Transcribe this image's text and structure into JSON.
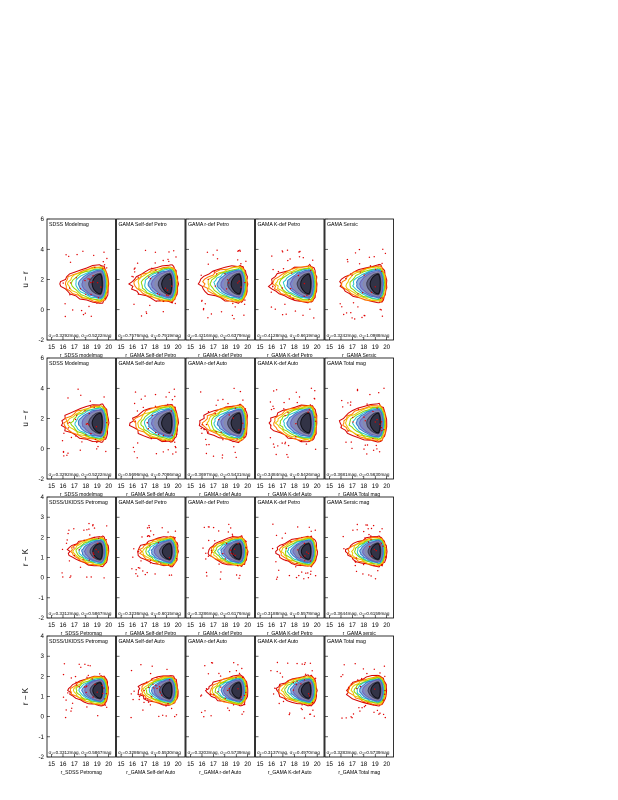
{
  "chart_data": {
    "type": "scatter",
    "grid_columns": 5,
    "x_ticks": [
      15,
      16,
      17,
      18,
      19,
      20
    ],
    "xlim": [
      14.6,
      20.6
    ],
    "panel_groups": [
      {
        "ylabel": "u − r",
        "ylim": [
          -2,
          6
        ],
        "y_ticks": [
          -2,
          0,
          2,
          4,
          6
        ],
        "core_y": 1.7,
        "rows": [
          {
            "panels": [
              {
                "title": "SDSS Modelmag",
                "stats": "σ₁=0.3292mag, σ₂=0.5222mag",
                "xlabel": "r_SDSS modelmag"
              },
              {
                "title": "GAMA Self-def Petro",
                "stats": "σ₁=0.7576mag, σ₂=0.7919mag",
                "xlabel": "r_GAMA Self-def Petro"
              },
              {
                "title": "GAMA r-def Petro",
                "stats": "σ₁=0.4216mag, σ₂=0.6379mag",
                "xlabel": "r_GAMA r-def Petro"
              },
              {
                "title": "GAMA K-def Petro",
                "stats": "σ₁=0.4128mag, σ₂=0.6619mag",
                "xlabel": "r_GAMA K-def Petro"
              },
              {
                "title": "GAMA Sersic",
                "stats": "σ₁=0.3242mag, σ₂=1.0988mag",
                "xlabel": "r_GAMA Sersic"
              }
            ]
          },
          {
            "panels": [
              {
                "title": "SDSS Modelmag",
                "stats": "σ₁=0.3292mag, σ₂=0.5222mag",
                "xlabel": "r_SDSS modelmag"
              },
              {
                "title": "GAMA Self-def Auto",
                "stats": "σ₁=0.5696mag, σ₂=0.7086mag",
                "xlabel": "r_GAMA Self-def Auto"
              },
              {
                "title": "GAMA r-def Auto",
                "stats": "σ₁=0.3697mag, σ₂=0.5431mag",
                "xlabel": "r_GAMA r-def Auto"
              },
              {
                "title": "GAMA K-def Auto",
                "stats": "σ₁=0.3484mag, σ₂=0.5426mag",
                "xlabel": "r_GAMA K-def Auto"
              },
              {
                "title": "GAMA Total mag",
                "stats": "σ₁=0.3681mag, σ₂=0.5630mag",
                "xlabel": "r_GAMA Total mag"
              }
            ]
          }
        ]
      },
      {
        "ylabel": "r − K",
        "ylim": [
          -2,
          4
        ],
        "y_ticks": [
          -2,
          -1,
          0,
          1,
          2,
          3,
          4
        ],
        "core_y": 1.3,
        "rows": [
          {
            "panels": [
              {
                "title": "SDSS/UKIDSS Petromag",
                "stats": "σ₁=0.3312mag, σ₂=0.5867mag",
                "xlabel": "r_SDSS Petromag"
              },
              {
                "title": "GAMA Self-def Petro",
                "stats": "σ₁=0.3236mag, σ₂=0.6015mag",
                "xlabel": "r_GAMA Self-def Petro"
              },
              {
                "title": "GAMA r-def Petro",
                "stats": "σ₁=0.3286mag, σ₂=0.6176mag",
                "xlabel": "r_GAMA r-def Petro"
              },
              {
                "title": "GAMA K-def Petro",
                "stats": "σ₁=0.3188mag, σ₂=0.5578mag",
                "xlabel": "r_GAMA K-def Petro"
              },
              {
                "title": "GAMA Sersic mag",
                "stats": "σ₁=0.3644mag, σ₂=0.6159mag",
                "xlabel": "r_GAMA sersic"
              }
            ]
          },
          {
            "panels": [
              {
                "title": "SDSS/UKIDSS Petromag",
                "stats": "σ₁=0.3312mag, σ₂=0.5867mag",
                "xlabel": "r_SDSS Petromag"
              },
              {
                "title": "GAMA Self-def Auto",
                "stats": "σ₁=0.3286mag, σ₂=0.5530mag",
                "xlabel": "r_GAMA Self-def Auto"
              },
              {
                "title": "GAMA r-def Auto",
                "stats": "σ₁=0.3203mag, σ₂=0.5739mag",
                "xlabel": "r_GAMA r-def Auto"
              },
              {
                "title": "GAMA K-def Auto",
                "stats": "σ₁=0.3137mag, σ₂=0.4970mag",
                "xlabel": "r_GAMA K-def Auto"
              },
              {
                "title": "GAMA Total mag",
                "stats": "σ₁=0.3283mag, σ₂=0.5739mag",
                "xlabel": "r_GAMA Total mag"
              }
            ]
          }
        ]
      }
    ],
    "contour_colors": [
      "#d40000",
      "#ff7a00",
      "#e8c800",
      "#8fd400",
      "#24c8c8",
      "#3a78c8",
      "#6e64b4",
      "#8a8aa8",
      "#3a3a50",
      "#101018"
    ]
  }
}
